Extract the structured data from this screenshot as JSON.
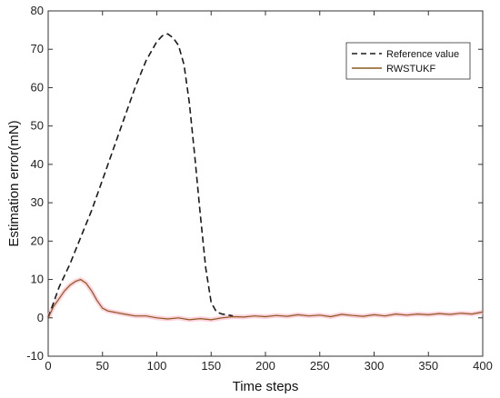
{
  "chart_data": {
    "type": "line",
    "title": "",
    "xlabel": "Time steps",
    "ylabel": "Estimation error(mN)",
    "xlim": [
      0,
      400
    ],
    "ylim": [
      -10,
      80
    ],
    "xticks": [
      0,
      50,
      100,
      150,
      200,
      250,
      300,
      350,
      400
    ],
    "yticks": [
      -10,
      0,
      10,
      20,
      30,
      40,
      50,
      60,
      70,
      80
    ],
    "grid": false,
    "legend_position": "top-right",
    "series": [
      {
        "name": "Reference value",
        "style": "dashed",
        "color": "#1a1a1a",
        "x": [
          0,
          10,
          20,
          30,
          40,
          50,
          60,
          70,
          80,
          90,
          100,
          105,
          110,
          115,
          120,
          125,
          130,
          135,
          140,
          145,
          150,
          155,
          160,
          165,
          170
        ],
        "y": [
          0,
          8,
          14,
          21,
          28,
          36,
          44,
          52,
          60,
          67,
          72,
          73.5,
          74,
          73,
          71,
          66,
          56,
          42,
          27,
          13,
          4,
          1.5,
          1,
          0.8,
          0.5
        ]
      },
      {
        "name": "RWSTUKF",
        "style": "solid",
        "color": "#8b5a1e",
        "x": [
          0,
          5,
          10,
          15,
          20,
          25,
          30,
          35,
          40,
          45,
          50,
          55,
          60,
          70,
          80,
          90,
          100,
          110,
          120,
          130,
          140,
          150,
          160,
          170,
          180,
          190,
          200,
          210,
          220,
          230,
          240,
          250,
          260,
          270,
          280,
          290,
          300,
          310,
          320,
          330,
          340,
          350,
          360,
          370,
          380,
          390,
          400
        ],
        "y": [
          0,
          3,
          5,
          7,
          8.5,
          9.5,
          10,
          9,
          7,
          4.5,
          2.5,
          1.8,
          1.5,
          1,
          0.5,
          0.5,
          0,
          -0.3,
          0,
          -0.5,
          -0.2,
          -0.5,
          0,
          0.3,
          0.2,
          0.5,
          0.3,
          0.6,
          0.4,
          0.8,
          0.5,
          0.7,
          0.3,
          0.9,
          0.6,
          0.4,
          0.8,
          0.5,
          1.0,
          0.7,
          1.0,
          0.8,
          1.1,
          0.9,
          1.2,
          1.0,
          1.5
        ]
      }
    ]
  }
}
